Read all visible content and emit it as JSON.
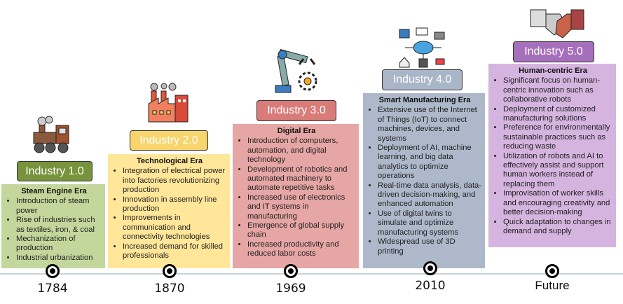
{
  "eras": [
    {
      "label": "Industry 1.0",
      "title": "Steam Engine Era",
      "year": "1784",
      "color": "#77933c",
      "box_color": "#c3d69b",
      "icon": "steam-train-icon",
      "items": [
        "Introduction of steam power",
        "Rise of industries such as textiles, iron, & coal",
        "Mechanization of production",
        "Industrial urbanization"
      ]
    },
    {
      "label": "Industry 2.0",
      "title": "Technological Era",
      "year": "1870",
      "color": "#f7d46c",
      "box_color": "#ffe699",
      "icon": "factory-icon",
      "items": [
        "Integration of electrical power into factories revolutionizing production",
        "Innovation in assembly line production",
        "Improvements in communication and connectivity technologies",
        "Increased demand for skilled professionals"
      ]
    },
    {
      "label": "Industry 3.0",
      "title": "Digital Era",
      "year": "1969",
      "color": "#d97b79",
      "box_color": "#e6a6a5",
      "icon": "robot-arm-icon",
      "items": [
        "Introduction of computers, automation, and digital technology",
        "Development of robotics and automated machinery to automate repetitive tasks",
        "Increased use of electronics and IT systems in manufacturing",
        "Emergence of global supply chain",
        "Increased productivity and reduced labor costs"
      ]
    },
    {
      "label": "Industry 4.0",
      "title": "Smart Manufacturing Era",
      "year": "2010",
      "color": "#a9b6c8",
      "box_color": "#adb9ca",
      "icon": "iot-cloud-icon",
      "items": [
        "Extensive use of the Internet of Things (IoT) to connect machines, devices, and systems",
        "Deployment of AI, machine learning, and big data analytics to optimize operations",
        "Real-time data analysis, data-driven decision-making, and enhanced automation",
        "Use of digital twins to simulate and optimize manufacturing systems",
        "Widespread use of 3D printing"
      ]
    },
    {
      "label": "Industry 5.0",
      "title": "Human-centric Era",
      "year": "Future",
      "color": "#a66fbb",
      "box_color": "#d5b4df",
      "icon": "human-robot-handshake-icon",
      "items": [
        "Significant focus on human-centric innovation such as collaborative robots",
        "Deployment of customized manufacturing solutions",
        "Preference for environmentally sustainable practices such as reducing waste",
        "Utilization of robots and AI to effectively assist and support human workers instead of replacing them",
        "Improvisation of worker skills and encouraging creativity and better decision-making",
        "Quick adaptation to changes in demand and supply"
      ]
    }
  ]
}
